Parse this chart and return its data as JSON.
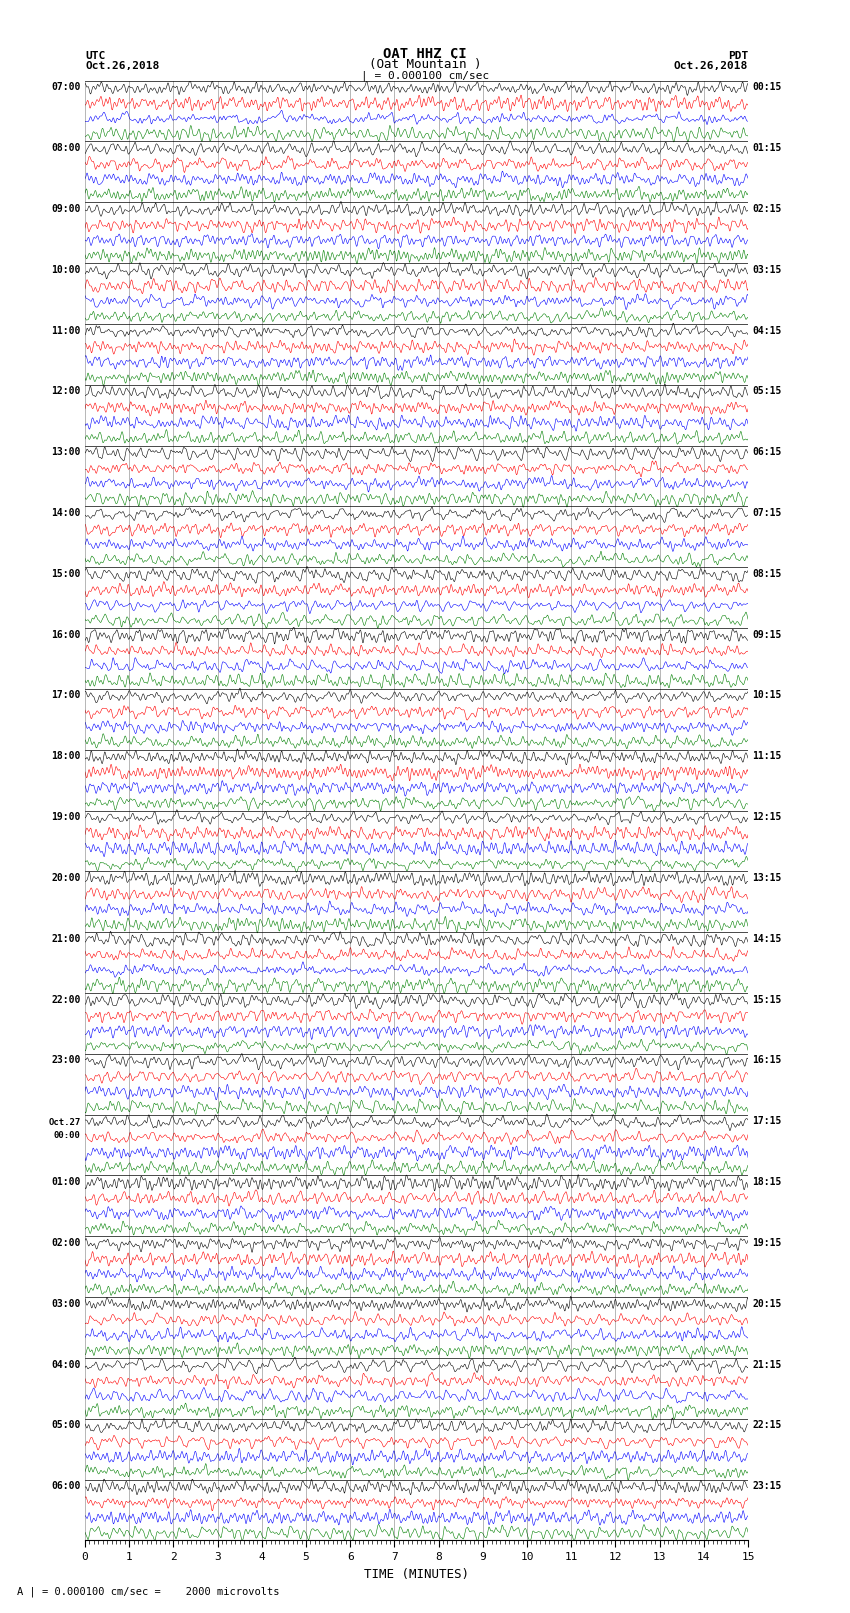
{
  "title_line1": "OAT HHZ CI",
  "title_line2": "(Oat Mountain )",
  "scale_bar": "| = 0.000100 cm/sec",
  "left_label_top": "UTC",
  "left_label_date": "Oct.26,2018",
  "right_label_top": "PDT",
  "right_label_date": "Oct.26,2018",
  "bottom_label": "TIME (MINUTES)",
  "footnote": "A | = 0.000100 cm/sec =    2000 microvolts",
  "utc_times": [
    "07:00",
    "08:00",
    "09:00",
    "10:00",
    "11:00",
    "12:00",
    "13:00",
    "14:00",
    "15:00",
    "16:00",
    "17:00",
    "18:00",
    "19:00",
    "20:00",
    "21:00",
    "22:00",
    "23:00",
    "Oct.27\n00:00",
    "01:00",
    "02:00",
    "03:00",
    "04:00",
    "05:00",
    "06:00"
  ],
  "pdt_times": [
    "00:15",
    "01:15",
    "02:15",
    "03:15",
    "04:15",
    "05:15",
    "06:15",
    "07:15",
    "08:15",
    "09:15",
    "10:15",
    "11:15",
    "12:15",
    "13:15",
    "14:15",
    "15:15",
    "16:15",
    "17:15",
    "18:15",
    "19:15",
    "20:15",
    "21:15",
    "22:15",
    "23:15"
  ],
  "num_rows": 24,
  "traces_per_row": 4,
  "colors": [
    "black",
    "red",
    "blue",
    "green"
  ],
  "xlim": [
    0,
    15
  ],
  "xticks": [
    0,
    1,
    2,
    3,
    4,
    5,
    6,
    7,
    8,
    9,
    10,
    11,
    12,
    13,
    14,
    15
  ],
  "fig_width": 8.5,
  "fig_height": 16.13,
  "bg_color": "white",
  "line_width": 0.4,
  "seed": 42,
  "n_points": 6000
}
